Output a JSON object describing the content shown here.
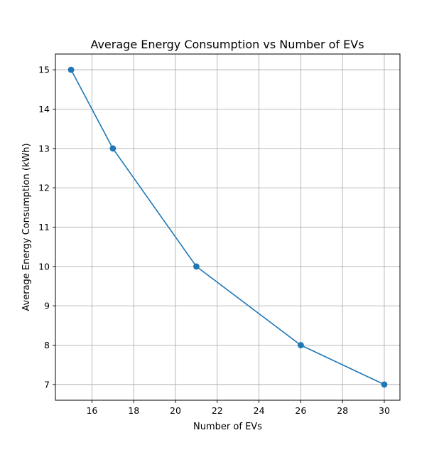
{
  "chart_data": {
    "type": "line",
    "title": "Average Energy Consumption vs Number of EVs",
    "xlabel": "Number of EVs",
    "ylabel": "Average Energy Consumption (kWh)",
    "series": [
      {
        "x": [
          15,
          17,
          21,
          26,
          30
        ],
        "y": [
          15,
          13,
          10,
          8,
          7
        ],
        "marker": "circle"
      }
    ],
    "xticks": [
      16,
      18,
      20,
      22,
      24,
      26,
      28,
      30
    ],
    "yticks": [
      7,
      8,
      9,
      10,
      11,
      12,
      13,
      14,
      15
    ],
    "xlim": [
      14.25,
      30.75
    ],
    "ylim": [
      6.6,
      15.4
    ],
    "grid": true,
    "colors": {
      "line": "#1f77b4",
      "grid": "#b0b0b0"
    }
  }
}
